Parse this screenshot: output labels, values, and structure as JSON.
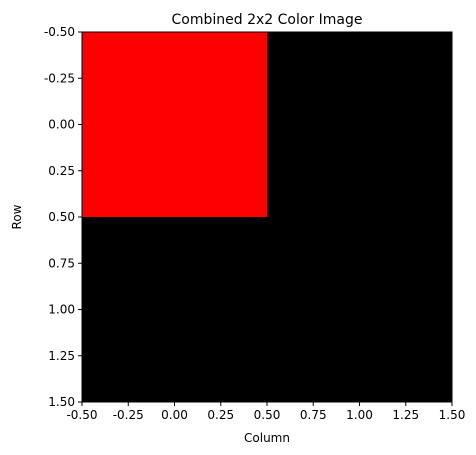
{
  "chart_data": {
    "type": "heatmap",
    "title": "Combined 2x2 Color Image",
    "xlabel": "Column",
    "ylabel": "Row",
    "xlim": [
      -0.5,
      1.5
    ],
    "ylim": [
      1.5,
      -0.5
    ],
    "xticks": [
      "-0.50",
      "-0.25",
      "0.00",
      "0.25",
      "0.50",
      "0.75",
      "1.00",
      "1.25",
      "1.50"
    ],
    "yticks": [
      "-0.50",
      "-0.25",
      "0.00",
      "0.25",
      "0.50",
      "0.75",
      "1.00",
      "1.25",
      "1.50"
    ],
    "grid": false,
    "cells": [
      {
        "row": 0,
        "col": 0,
        "color": "#ff0000"
      },
      {
        "row": 0,
        "col": 1,
        "color": "#000000"
      },
      {
        "row": 1,
        "col": 0,
        "color": "#000000"
      },
      {
        "row": 1,
        "col": 1,
        "color": "#000000"
      }
    ]
  }
}
